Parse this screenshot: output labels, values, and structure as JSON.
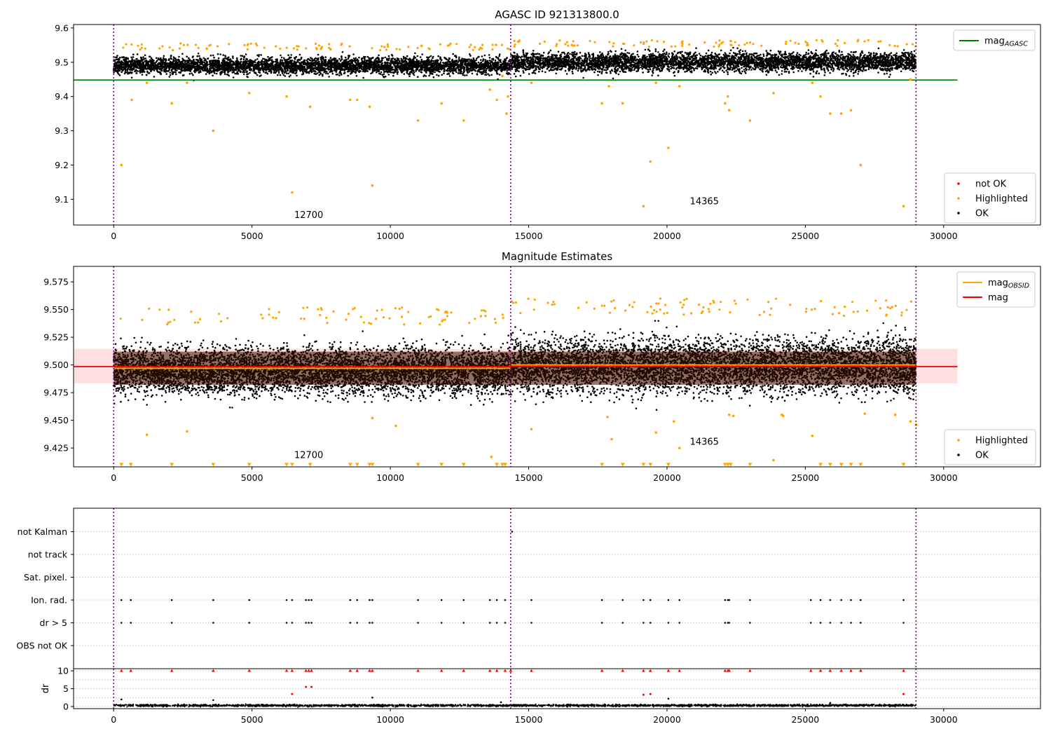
{
  "chart_data": [
    {
      "type": "scatter",
      "title": "AGASC ID 921313800.0",
      "xlim": [
        -1450,
        33500
      ],
      "ylim": [
        9.025,
        9.61
      ],
      "x_ticks": [
        0,
        5000,
        10000,
        15000,
        20000,
        25000,
        30000
      ],
      "x_tick_labels": [
        "0",
        "5000",
        "10000",
        "15000",
        "20000",
        "25000",
        "30000"
      ],
      "y_ticks": [
        9.1,
        9.2,
        9.3,
        9.4,
        9.5,
        9.6
      ],
      "y_tick_labels": [
        "9.1",
        "9.2",
        "9.3",
        "9.4",
        "9.5",
        "9.6"
      ],
      "obsid_boundaries": [
        0,
        14350,
        29000
      ],
      "obsid_labels": [
        {
          "text": "12700",
          "x": 7050,
          "y": 9.045
        },
        {
          "text": "14365",
          "x": 21350,
          "y": 9.085
        }
      ],
      "reference_lines": [
        {
          "name": "mag_AGASC",
          "y": 9.448,
          "x_range": [
            -1450,
            30500
          ],
          "color": "#008000"
        }
      ],
      "series": [
        {
          "name": "not OK",
          "color": "#ff0000",
          "points": []
        },
        {
          "name": "Highlighted",
          "color": "#ffa500",
          "points": [
            [
              280,
              9.2
            ],
            [
              650,
              9.39
            ],
            [
              1200,
              9.44
            ],
            [
              2100,
              9.38
            ],
            [
              2650,
              9.44
            ],
            [
              3600,
              9.3
            ],
            [
              4900,
              9.41
            ],
            [
              6250,
              9.4
            ],
            [
              6450,
              9.12
            ],
            [
              7100,
              9.37
            ],
            [
              8550,
              9.39
            ],
            [
              8800,
              9.39
            ],
            [
              9250,
              9.37
            ],
            [
              9350,
              9.14
            ],
            [
              11000,
              9.33
            ],
            [
              11850,
              9.38
            ],
            [
              12650,
              9.33
            ],
            [
              13600,
              9.42
            ],
            [
              13850,
              9.39
            ],
            [
              14050,
              9.46
            ],
            [
              14200,
              9.35
            ],
            [
              14250,
              9.4
            ],
            [
              15100,
              9.44
            ],
            [
              17650,
              9.38
            ],
            [
              17900,
              9.43
            ],
            [
              18400,
              9.38
            ],
            [
              19150,
              9.08
            ],
            [
              19400,
              9.21
            ],
            [
              19600,
              9.44
            ],
            [
              20050,
              9.25
            ],
            [
              20450,
              9.43
            ],
            [
              22100,
              9.38
            ],
            [
              22250,
              9.36
            ],
            [
              22200,
              9.4
            ],
            [
              23000,
              9.33
            ],
            [
              23850,
              9.41
            ],
            [
              25250,
              9.44
            ],
            [
              25550,
              9.4
            ],
            [
              25900,
              9.35
            ],
            [
              26300,
              9.35
            ],
            [
              26650,
              9.36
            ],
            [
              27000,
              9.2
            ],
            [
              28550,
              9.08
            ],
            [
              28800,
              9.45
            ]
          ]
        },
        {
          "name": "OK",
          "color": "#000000",
          "points": []
        }
      ],
      "ok_band_segments": [
        {
          "x_range": [
            0,
            14350
          ],
          "center": 9.49,
          "spread": 0.022
        },
        {
          "x_range": [
            14350,
            29000
          ],
          "center": 9.5,
          "spread": 0.025
        }
      ],
      "legend": [
        {
          "location": "top-right",
          "entries": [
            {
              "type": "line",
              "label": "mag",
              "sub": "AGASC",
              "color": "#008000"
            }
          ]
        },
        {
          "location": "bottom-right",
          "entries": [
            {
              "type": "marker",
              "label": "not OK",
              "color": "#ff0000"
            },
            {
              "type": "marker",
              "label": "Highlighted",
              "color": "#ffa500"
            },
            {
              "type": "marker",
              "label": "OK",
              "color": "#000000"
            }
          ]
        }
      ]
    },
    {
      "type": "scatter",
      "title": "Magnitude Estimates",
      "xlim": [
        -1450,
        33500
      ],
      "ylim": [
        9.408,
        9.589
      ],
      "x_ticks": [
        0,
        5000,
        10000,
        15000,
        20000,
        25000,
        30000
      ],
      "x_tick_labels": [
        "0",
        "5000",
        "10000",
        "15000",
        "20000",
        "25000",
        "30000"
      ],
      "y_ticks": [
        9.425,
        9.45,
        9.475,
        9.5,
        9.525,
        9.55,
        9.575
      ],
      "y_tick_labels": [
        "9.425",
        "9.450",
        "9.475",
        "9.500",
        "9.525",
        "9.550",
        "9.575"
      ],
      "obsid_boundaries": [
        0,
        14350,
        29000
      ],
      "obsid_labels": [
        {
          "text": "12700",
          "x": 7050,
          "y": 9.416
        },
        {
          "text": "14365",
          "x": 21350,
          "y": 9.428
        }
      ],
      "mag_band": {
        "y_range": [
          9.4835,
          9.5145
        ],
        "x_range": [
          -1450,
          30500
        ],
        "color": "#ff0000",
        "alpha": 0.12
      },
      "reference_lines": [
        {
          "name": "mag",
          "y": 9.4985,
          "x_range": [
            -1450,
            30500
          ],
          "color": "#ff0000"
        },
        {
          "name": "mag_OBSID",
          "segments": [
            {
              "x_range": [
                0,
                14350
              ],
              "y": 9.497
            },
            {
              "x_range": [
                14350,
                29000
              ],
              "y": 9.5
            }
          ],
          "color": "#ffa500"
        }
      ],
      "ok_band_segments": [
        {
          "x_range": [
            0,
            14350
          ],
          "center": 9.495,
          "spread": 0.019
        },
        {
          "x_range": [
            14350,
            29000
          ],
          "center": 9.499,
          "spread": 0.022
        }
      ],
      "series": [
        {
          "name": "Highlighted",
          "color": "#ffa500",
          "points": [
            [
              1200,
              9.437
            ],
            [
              2650,
              9.44
            ],
            [
              9350,
              9.452
            ],
            [
              10200,
              9.445
            ],
            [
              13650,
              9.417
            ],
            [
              15100,
              9.442
            ],
            [
              17850,
              9.453
            ],
            [
              18000,
              9.433
            ],
            [
              19600,
              9.439
            ],
            [
              20250,
              9.449
            ],
            [
              20450,
              9.425
            ],
            [
              22250,
              9.455
            ],
            [
              22400,
              9.454
            ],
            [
              23850,
              9.414
            ],
            [
              24150,
              9.455
            ],
            [
              24200,
              9.454
            ],
            [
              25250,
              9.436
            ],
            [
              27150,
              9.456
            ],
            [
              28250,
              9.455
            ],
            [
              28800,
              9.449
            ],
            [
              29000,
              9.446
            ]
          ]
        },
        {
          "name": "Highlighted-upper-limit",
          "color": "#ffa500",
          "points": [
            [
              280,
              9.41
            ],
            [
              620,
              9.41
            ],
            [
              2100,
              9.41
            ],
            [
              3600,
              9.41
            ],
            [
              4900,
              9.41
            ],
            [
              6250,
              9.41
            ],
            [
              6450,
              9.41
            ],
            [
              7100,
              9.41
            ],
            [
              8550,
              9.41
            ],
            [
              8800,
              9.41
            ],
            [
              9250,
              9.41
            ],
            [
              9350,
              9.41
            ],
            [
              11000,
              9.41
            ],
            [
              11850,
              9.41
            ],
            [
              12650,
              9.41
            ],
            [
              13850,
              9.41
            ],
            [
              14050,
              9.41
            ],
            [
              14150,
              9.41
            ],
            [
              17650,
              9.41
            ],
            [
              18400,
              9.41
            ],
            [
              19150,
              9.41
            ],
            [
              19400,
              9.41
            ],
            [
              20050,
              9.41
            ],
            [
              22100,
              9.41
            ],
            [
              22200,
              9.41
            ],
            [
              22300,
              9.41
            ],
            [
              23000,
              9.41
            ],
            [
              25550,
              9.41
            ],
            [
              25900,
              9.41
            ],
            [
              26300,
              9.41
            ],
            [
              26650,
              9.41
            ],
            [
              27000,
              9.41
            ],
            [
              28550,
              9.41
            ]
          ]
        },
        {
          "name": "OK",
          "color": "#000000",
          "points": []
        }
      ],
      "legend": [
        {
          "location": "top-right",
          "entries": [
            {
              "type": "line",
              "label": "mag",
              "sub": "OBSID",
              "color": "#ffa500"
            },
            {
              "type": "line",
              "label": "mag",
              "sub": "",
              "color": "#ff0000"
            }
          ]
        },
        {
          "location": "bottom-right",
          "entries": [
            {
              "type": "marker",
              "label": "Highlighted",
              "color": "#ffa500"
            },
            {
              "type": "marker",
              "label": "OK",
              "color": "#000000"
            }
          ]
        }
      ]
    },
    {
      "type": "scatter",
      "title": "",
      "xlim": [
        -1450,
        33500
      ],
      "categories": [
        "OBS not OK",
        "dr > 5",
        "Ion. rad.",
        "Sat. pixel.",
        "not track",
        "not Kalman"
      ],
      "obsid_boundaries": [
        0,
        14350,
        29000
      ],
      "flag_points": {
        "dr > 5": [
          280,
          620,
          2100,
          3600,
          4900,
          6250,
          6450,
          6950,
          7050,
          7150,
          8550,
          8800,
          9250,
          9350,
          11000,
          11850,
          12650,
          13600,
          13850,
          14150,
          15100,
          17650,
          18400,
          19150,
          19400,
          20050,
          20450,
          22100,
          22200,
          22250,
          23000,
          25200,
          25550,
          25900,
          26300,
          26650,
          27000,
          28550
        ],
        "Ion. rad.": [
          280,
          620,
          2100,
          3600,
          4900,
          6250,
          6450,
          6950,
          7050,
          7150,
          8550,
          8800,
          9250,
          9350,
          11000,
          11850,
          12650,
          13600,
          13850,
          14150,
          15100,
          17650,
          18400,
          19150,
          19400,
          20050,
          20450,
          22100,
          22200,
          22250,
          23000,
          25200,
          25550,
          25900,
          26300,
          26650,
          27000,
          28550
        ],
        "not Kalman": [
          14400
        ]
      }
    },
    {
      "type": "scatter",
      "title": "",
      "ylabel": "dr",
      "xlim": [
        -1450,
        33500
      ],
      "ylim": [
        -0.6,
        10.6
      ],
      "x_ticks": [
        0,
        5000,
        10000,
        15000,
        20000,
        25000,
        30000
      ],
      "x_tick_labels": [
        "0",
        "5000",
        "10000",
        "15000",
        "20000",
        "25000",
        "30000"
      ],
      "y_ticks": [
        0,
        5,
        10
      ],
      "y_tick_labels": [
        "0",
        "5",
        "10"
      ],
      "obsid_boundaries": [
        0,
        14350,
        29000
      ],
      "dr_ok_band": {
        "x_range": [
          0,
          29000
        ],
        "center": 0.3,
        "spread": 0.25
      },
      "series": [
        {
          "name": "dr > 10 (clipped)",
          "color": "#ff0000",
          "marker": "triangle-up",
          "points": [
            [
              280,
              10
            ],
            [
              620,
              10
            ],
            [
              2100,
              10
            ],
            [
              3600,
              10
            ],
            [
              4900,
              10
            ],
            [
              6250,
              10
            ],
            [
              6450,
              10
            ],
            [
              6950,
              10
            ],
            [
              7050,
              10
            ],
            [
              7150,
              10
            ],
            [
              8550,
              10
            ],
            [
              8800,
              10
            ],
            [
              9250,
              10
            ],
            [
              9350,
              10
            ],
            [
              11000,
              10
            ],
            [
              11850,
              10
            ],
            [
              12650,
              10
            ],
            [
              13600,
              10
            ],
            [
              13850,
              10
            ],
            [
              14150,
              10
            ],
            [
              14350,
              10
            ],
            [
              15100,
              10
            ],
            [
              17650,
              10
            ],
            [
              18400,
              10
            ],
            [
              19150,
              10
            ],
            [
              19400,
              10
            ],
            [
              20050,
              10
            ],
            [
              20450,
              10
            ],
            [
              22100,
              10
            ],
            [
              22200,
              10
            ],
            [
              22250,
              10
            ],
            [
              23000,
              10
            ],
            [
              25200,
              10
            ],
            [
              25550,
              10
            ],
            [
              25900,
              10
            ],
            [
              26300,
              10
            ],
            [
              26650,
              10
            ],
            [
              27000,
              10
            ],
            [
              28550,
              10
            ]
          ]
        },
        {
          "name": "dr red",
          "color": "#ff0000",
          "points": [
            [
              6450,
              3.5
            ],
            [
              6950,
              5.5
            ],
            [
              7150,
              5.5
            ],
            [
              19150,
              3.3
            ],
            [
              19400,
              3.5
            ],
            [
              28550,
              3.5
            ]
          ]
        },
        {
          "name": "dr black",
          "color": "#000000",
          "points": [
            [
              280,
              2
            ],
            [
              3600,
              1.8
            ],
            [
              9350,
              2.5
            ],
            [
              20050,
              2.2
            ],
            [
              14000,
              1.2
            ],
            [
              25900,
              1.0
            ]
          ]
        }
      ]
    }
  ]
}
